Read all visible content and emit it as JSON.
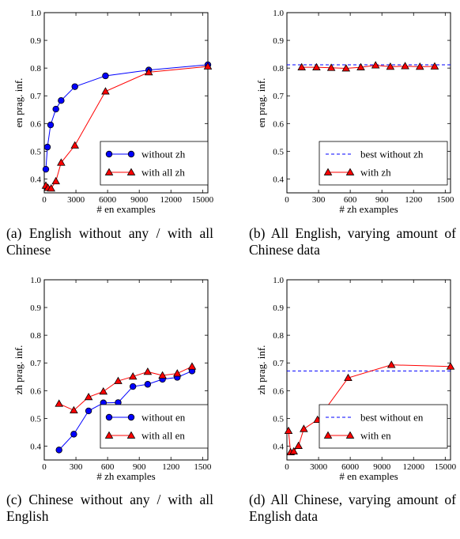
{
  "captions": [
    "(a) English without any / with all Chinese",
    "(b) All English, varying amount of Chinese data",
    "(c) Chinese without any / with all English",
    "(d) All Chinese, varying amount of English data"
  ],
  "colors": {
    "blue": "#0000ff",
    "red": "#ff0000",
    "blue_fill": "#0000ff",
    "red_fill": "#ff0000"
  },
  "chart_data": [
    {
      "type": "line",
      "xlabel": "# en examples",
      "ylabel": "en prag. inf.",
      "xlim": [
        0,
        15500
      ],
      "ylim": [
        0.35,
        1.0
      ],
      "xticks": [
        0,
        3000,
        6000,
        9000,
        12000,
        15000
      ],
      "yticks": [
        0.4,
        0.5,
        0.6,
        0.7,
        0.8,
        0.9,
        1.0
      ],
      "legend_position": "bottom-right",
      "series": [
        {
          "name": "without zh",
          "color": "blue",
          "marker": "circle",
          "x": [
            150,
            300,
            600,
            1100,
            1600,
            2900,
            5800,
            9900,
            15500
          ],
          "y": [
            0.435,
            0.515,
            0.595,
            0.652,
            0.683,
            0.733,
            0.772,
            0.793,
            0.812
          ]
        },
        {
          "name": "with all zh",
          "color": "red",
          "marker": "triangle",
          "x": [
            150,
            350,
            650,
            1100,
            1600,
            2900,
            5800,
            9900,
            15500
          ],
          "y": [
            0.376,
            0.368,
            0.366,
            0.392,
            0.459,
            0.521,
            0.716,
            0.785,
            0.806
          ]
        }
      ]
    },
    {
      "type": "line",
      "xlabel": "# zh examples",
      "ylabel": "en prag. inf.",
      "xlim": [
        0,
        1550
      ],
      "ylim": [
        0.35,
        1.0
      ],
      "xticks": [
        0,
        300,
        600,
        900,
        1200,
        1500
      ],
      "yticks": [
        0.4,
        0.5,
        0.6,
        0.7,
        0.8,
        0.9,
        1.0
      ],
      "legend_position": "bottom-right",
      "reference_line": {
        "name": "best without zh",
        "y": 0.812,
        "color": "blue"
      },
      "series": [
        {
          "name": "with zh",
          "color": "red",
          "marker": "triangle",
          "x": [
            140,
            280,
            420,
            560,
            700,
            840,
            980,
            1120,
            1260,
            1400
          ],
          "y": [
            0.803,
            0.803,
            0.801,
            0.799,
            0.803,
            0.81,
            0.805,
            0.807,
            0.805,
            0.806
          ]
        }
      ]
    },
    {
      "type": "line",
      "xlabel": "# zh examples",
      "ylabel": "zh prag. inf.",
      "xlim": [
        0,
        1550
      ],
      "ylim": [
        0.35,
        1.0
      ],
      "xticks": [
        0,
        300,
        600,
        900,
        1200,
        1500
      ],
      "yticks": [
        0.4,
        0.5,
        0.6,
        0.7,
        0.8,
        0.9,
        1.0
      ],
      "legend_position": "bottom-right",
      "series": [
        {
          "name": "without en",
          "color": "blue",
          "marker": "circle",
          "x": [
            140,
            280,
            420,
            560,
            700,
            840,
            980,
            1120,
            1260,
            1400
          ],
          "y": [
            0.386,
            0.443,
            0.527,
            0.556,
            0.557,
            0.615,
            0.623,
            0.641,
            0.648,
            0.671
          ]
        },
        {
          "name": "with all en",
          "color": "red",
          "marker": "triangle",
          "x": [
            140,
            280,
            420,
            560,
            700,
            840,
            980,
            1120,
            1260,
            1400
          ],
          "y": [
            0.553,
            0.529,
            0.577,
            0.597,
            0.635,
            0.651,
            0.668,
            0.655,
            0.662,
            0.687
          ]
        }
      ]
    },
    {
      "type": "line",
      "xlabel": "# en examples",
      "ylabel": "zh prag. inf.",
      "xlim": [
        0,
        15500
      ],
      "ylim": [
        0.35,
        1.0
      ],
      "xticks": [
        0,
        3000,
        6000,
        9000,
        12000,
        15000
      ],
      "yticks": [
        0.4,
        0.5,
        0.6,
        0.7,
        0.8,
        0.9,
        1.0
      ],
      "legend_position": "bottom-right",
      "reference_line": {
        "name": "best without en",
        "y": 0.671,
        "color": "blue"
      },
      "series": [
        {
          "name": "with en",
          "color": "red",
          "marker": "triangle",
          "x": [
            150,
            350,
            650,
            1100,
            1600,
            2900,
            5800,
            9900,
            15500
          ],
          "y": [
            0.455,
            0.378,
            0.381,
            0.401,
            0.462,
            0.495,
            0.646,
            0.693,
            0.687
          ]
        }
      ]
    }
  ]
}
